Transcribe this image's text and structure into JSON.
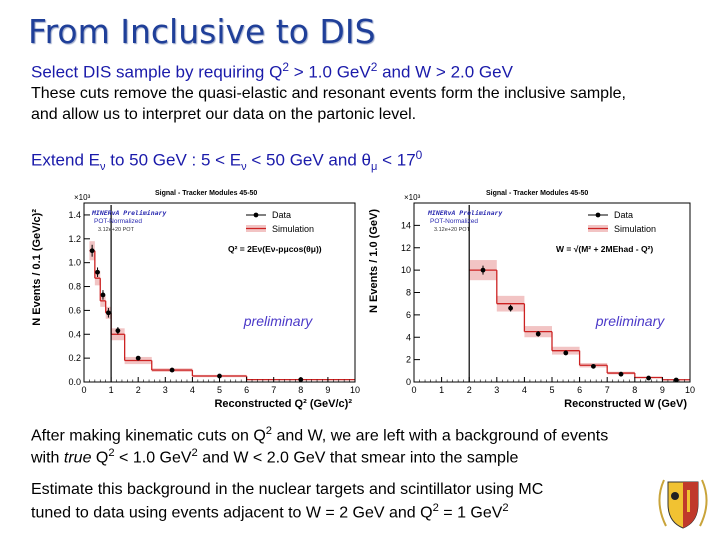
{
  "slide": {
    "title": "From Inclusive to DIS",
    "line1_a": "Select DIS sample by requiring Q",
    "line1_sup1": "2",
    "line1_b": " > 1.0 GeV",
    "line1_sup2": "2",
    "line1_c": " and W > 2.0 GeV",
    "para1_l1": "These cuts remove the quasi-elastic and resonant events form the inclusive sample,",
    "para1_l2": "and allow us to interpret our data on the partonic level.",
    "extend_a": "Extend E",
    "extend_sub1": "ν",
    "extend_b": " to 50 GeV : 5 < E",
    "extend_sub2": "ν",
    "extend_c": " < 50 GeV and θ",
    "extend_sub3": "μ",
    "extend_d": " < 17",
    "extend_sup": "0",
    "para2_l1_a": "After making kinematic cuts on Q",
    "para2_l1_sup": "2",
    "para2_l1_b": " and W, we are left with a background of events",
    "para2_l2_a": "with ",
    "para2_l2_italic": "true",
    "para2_l2_b": " Q",
    "para2_l2_sup1": "2",
    "para2_l2_c": " < 1.0 GeV",
    "para2_l2_sup2": "2",
    "para2_l2_d": " and W < 2.0 GeV that smear into the sample",
    "para3_l1": "Estimate this background in the nuclear targets and scintillator using MC",
    "para3_l2_a": "tuned to data using events adjacent to W = 2 GeV and Q",
    "para3_l2_sup1": "2",
    "para3_l2_b": " = 1 GeV",
    "para3_l2_sup2": "2"
  },
  "colors": {
    "title": "#1f3f99",
    "text_blue": "#1a1aaa",
    "sim_line": "#cc2222",
    "sim_band": "#f2c4c4",
    "data": "#000000",
    "overlay": "#4a38c8"
  },
  "chart_data": [
    {
      "type": "line",
      "title": "Signal - Tracker Modules 45-50",
      "xlabel": "Reconstructed Q² (GeV/c)²",
      "ylabel": "N Events / 0.1 (GeV/c)²",
      "scale_label": "×10³",
      "xlim": [
        0,
        10
      ],
      "ylim": [
        0,
        1.5
      ],
      "xticks": [
        "0",
        "1",
        "2",
        "3",
        "4",
        "5",
        "6",
        "7",
        "8",
        "9",
        "10"
      ],
      "yticks": [
        "0.0",
        "0.2",
        "0.4",
        "0.6",
        "0.8",
        "1.0",
        "1.2",
        "1.4"
      ],
      "legend": [
        "Data",
        "Simulation"
      ],
      "stamp_l1": "MINERvA Preliminary",
      "stamp_l2": "POT-Normalized",
      "stamp_l3": "3.12e+20 POT",
      "formula": "Q² = 2Eν(Eν-pμcos(θμ))",
      "overlay_text": "preliminary",
      "sim_bins": [
        0.2,
        0.4,
        0.6,
        0.8,
        1.0,
        1.5,
        2.5,
        4.0,
        6.0,
        10.0
      ],
      "sim_values": [
        1.1,
        0.87,
        0.68,
        0.58,
        0.4,
        0.18,
        0.1,
        0.05,
        0.02
      ],
      "sim_errors": [
        0.08,
        0.06,
        0.05,
        0.05,
        0.05,
        0.03,
        0.015,
        0.01,
        0.005
      ],
      "data_x": [
        0.3,
        0.5,
        0.7,
        0.9,
        1.25,
        2.0,
        3.25,
        5.0,
        8.0
      ],
      "data_y": [
        1.1,
        0.92,
        0.73,
        0.58,
        0.43,
        0.2,
        0.1,
        0.05,
        0.02
      ],
      "data_err": [
        0.05,
        0.04,
        0.04,
        0.04,
        0.03,
        0.015,
        0.01,
        0.006,
        0.004
      ],
      "cut_x": 1.0
    },
    {
      "type": "line",
      "title": "Signal - Tracker Modules 45-50",
      "xlabel": "Reconstructed W (GeV)",
      "ylabel": "N Events / 1.0 (GeV)",
      "scale_label": "×10³",
      "xlim": [
        0,
        10
      ],
      "ylim": [
        0,
        16
      ],
      "xticks": [
        "0",
        "1",
        "2",
        "3",
        "4",
        "5",
        "6",
        "7",
        "8",
        "9",
        "10"
      ],
      "yticks": [
        "0",
        "2",
        "4",
        "6",
        "8",
        "10",
        "12",
        "14"
      ],
      "legend": [
        "Data",
        "Simulation"
      ],
      "stamp_l1": "MINERvA Preliminary",
      "stamp_l2": "POT-Normalized",
      "stamp_l3": "3.12e+20 POT",
      "formula": "W = √(M² + 2MEhad - Q²)",
      "overlay_text": "preliminary",
      "sim_bins": [
        2,
        3,
        4,
        5,
        6,
        7,
        8,
        9,
        10
      ],
      "sim_values": [
        10.0,
        7.0,
        4.5,
        2.8,
        1.5,
        0.8,
        0.4,
        0.2
      ],
      "sim_errors": [
        0.9,
        0.7,
        0.5,
        0.35,
        0.2,
        0.12,
        0.07,
        0.04
      ],
      "data_x": [
        2.5,
        3.5,
        4.5,
        5.5,
        6.5,
        7.5,
        8.5,
        9.5
      ],
      "data_y": [
        10.0,
        6.6,
        4.3,
        2.6,
        1.4,
        0.7,
        0.35,
        0.18
      ],
      "data_err": [
        0.4,
        0.3,
        0.25,
        0.2,
        0.15,
        0.1,
        0.08,
        0.05
      ],
      "cut_x": 2.0
    }
  ]
}
